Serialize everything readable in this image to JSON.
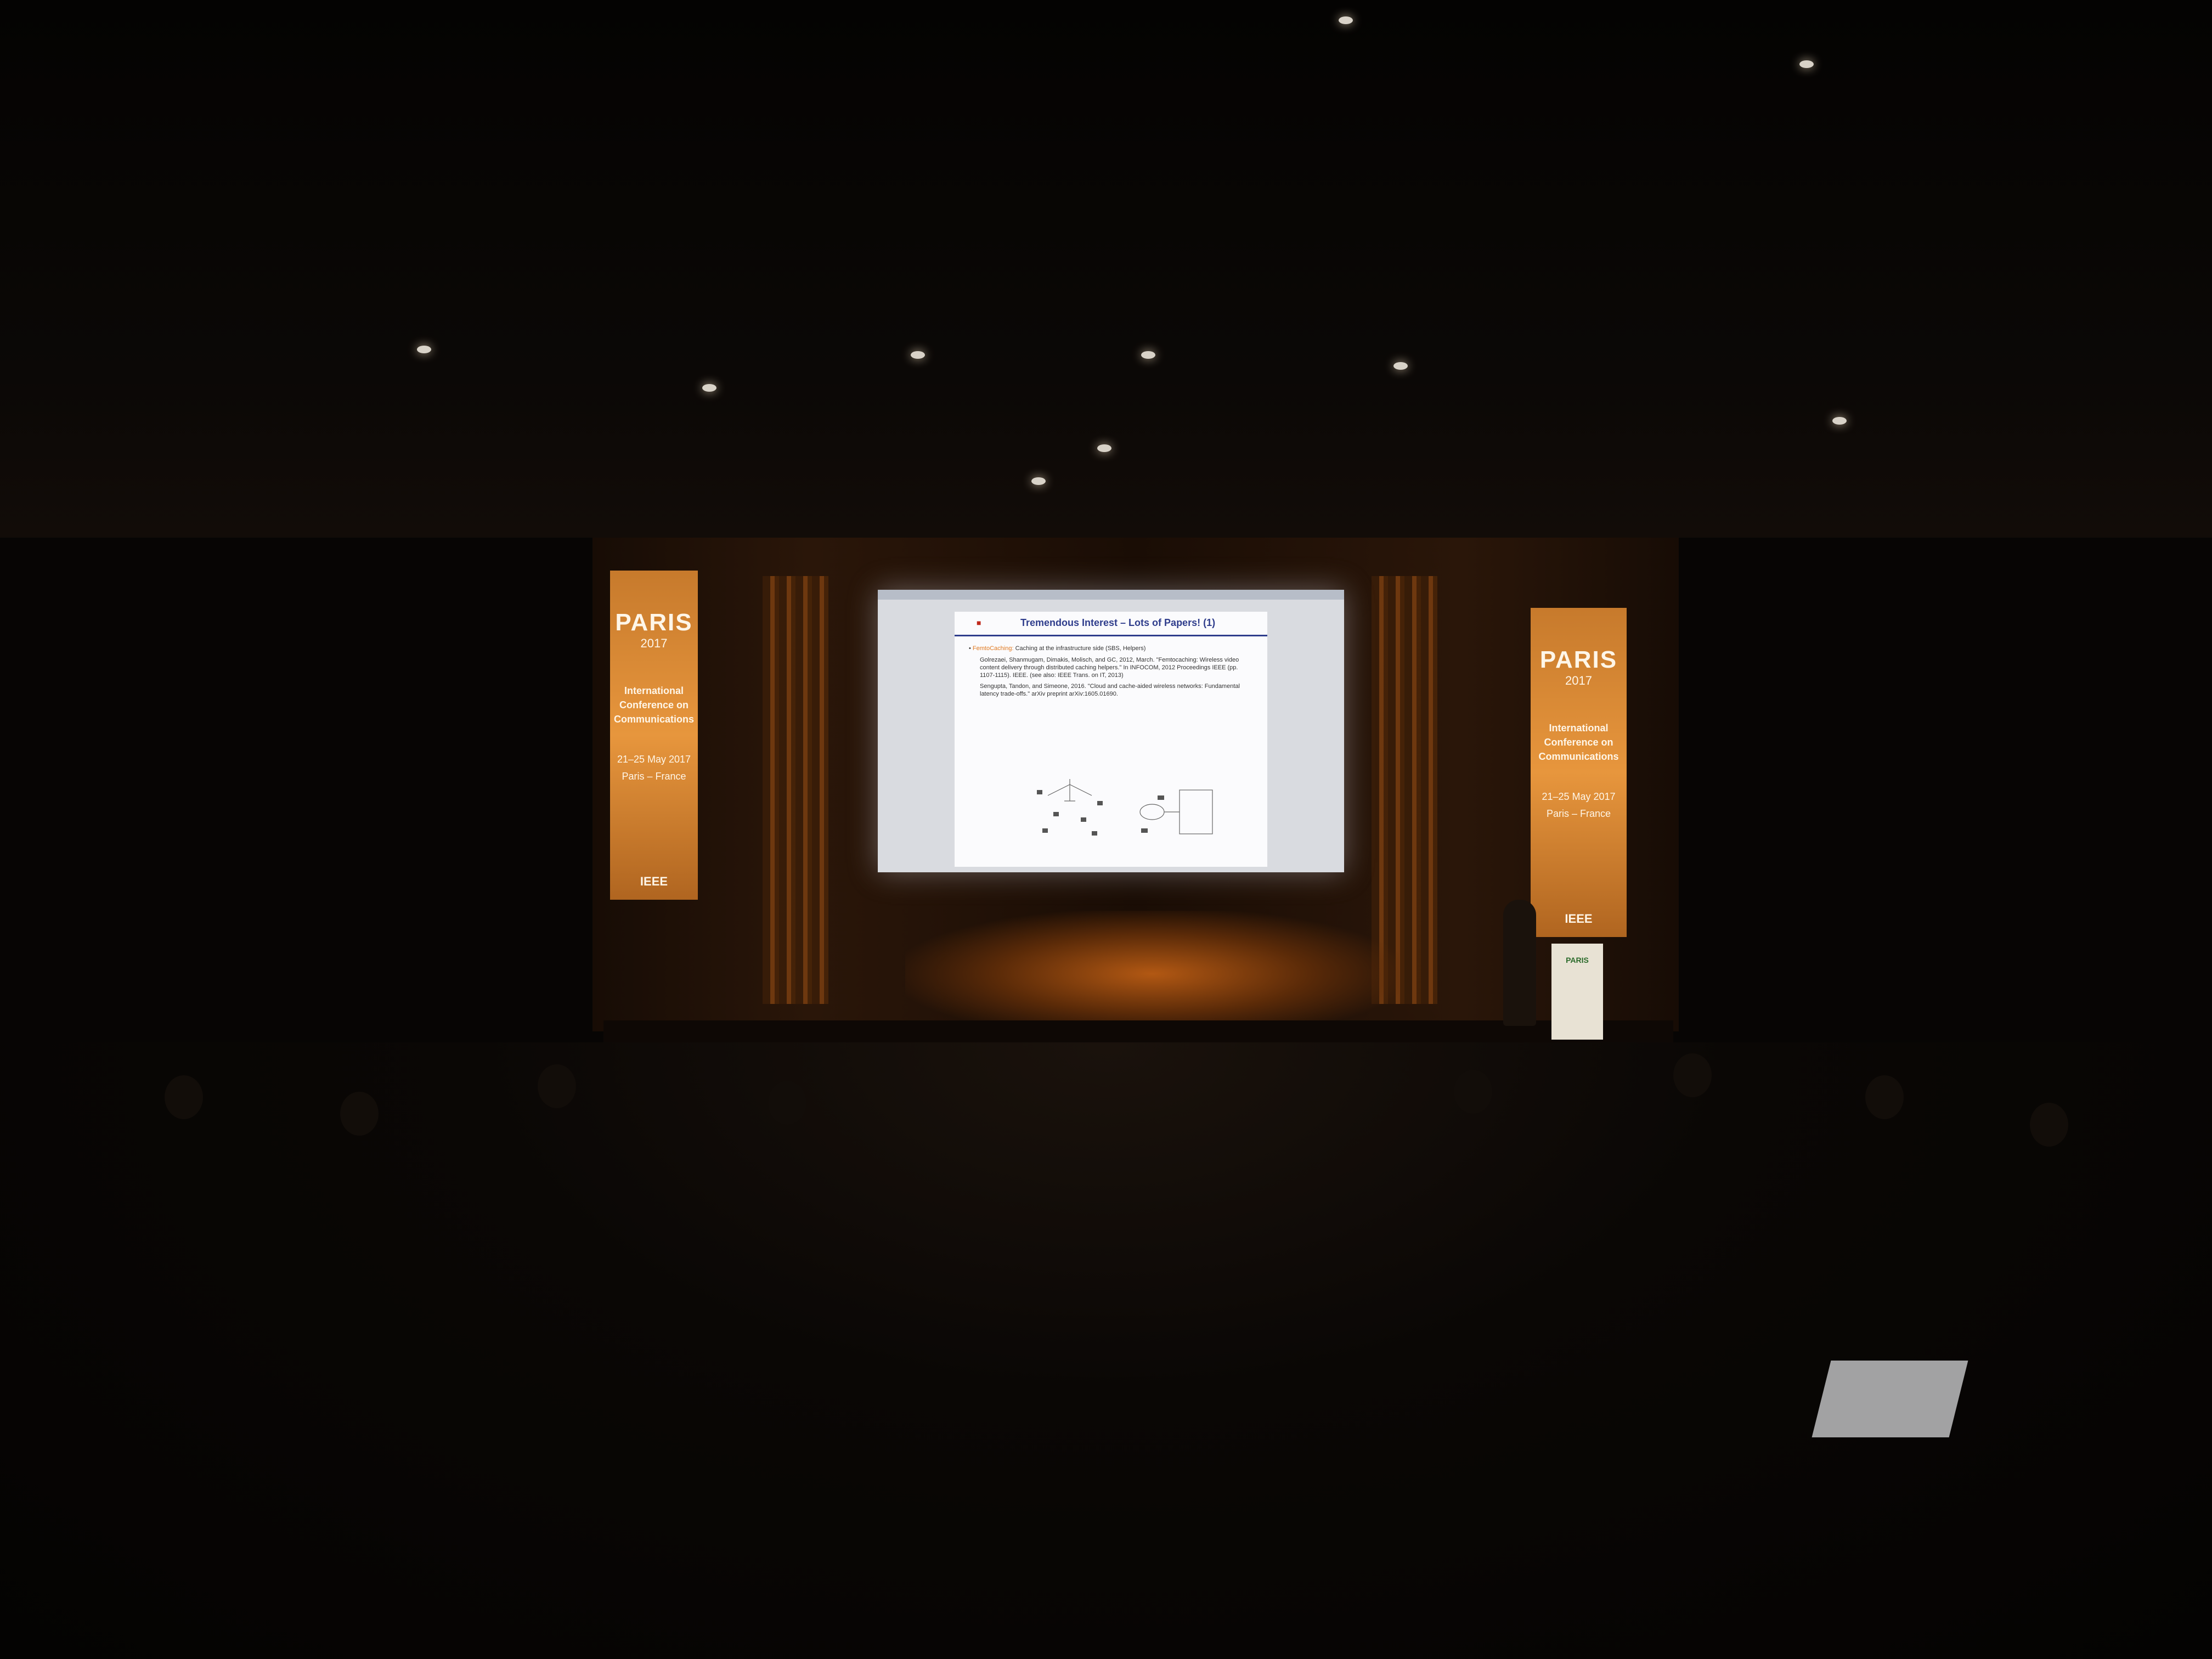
{
  "banner_left": {
    "logo": "PARIS",
    "year": "2017",
    "conference": "International Conference on Communications",
    "dates": "21–25 May 2017",
    "city": "Paris – France",
    "sponsor": "IEEE"
  },
  "banner_right": {
    "logo": "PARIS",
    "year": "2017",
    "conference": "International Conference on Communications",
    "dates": "21–25 May 2017",
    "city": "Paris – France",
    "sponsor": "IEEE"
  },
  "slide": {
    "title": "Tremendous Interest – Lots of Papers! (1)",
    "bullet_highlight": "FemtoCaching:",
    "bullet_text": "Caching at the infrastructure side (SBS, Helpers)",
    "references": [
      "Golrezaei, Shanmugam, Dimakis, Molisch, and GC, 2012, March. \"Femtocaching: Wireless video content delivery through distributed caching helpers.\" In INFOCOM, 2012 Proceedings IEEE (pp. 1107-1115). IEEE. (see also: IEEE Trans. on IT, 2013)",
      "Sengupta, Tandon, and Simeone, 2016. \"Cloud and cache-aided wireless networks: Fundamental latency trade-offs.\" arXiv preprint arXiv:1605.01690."
    ]
  },
  "lectern": {
    "logo": "PARIS"
  },
  "colors": {
    "stage_amber": "#e7963d",
    "slide_title_blue": "#2f3d8c",
    "slide_highlight_orange": "#e0781f"
  }
}
